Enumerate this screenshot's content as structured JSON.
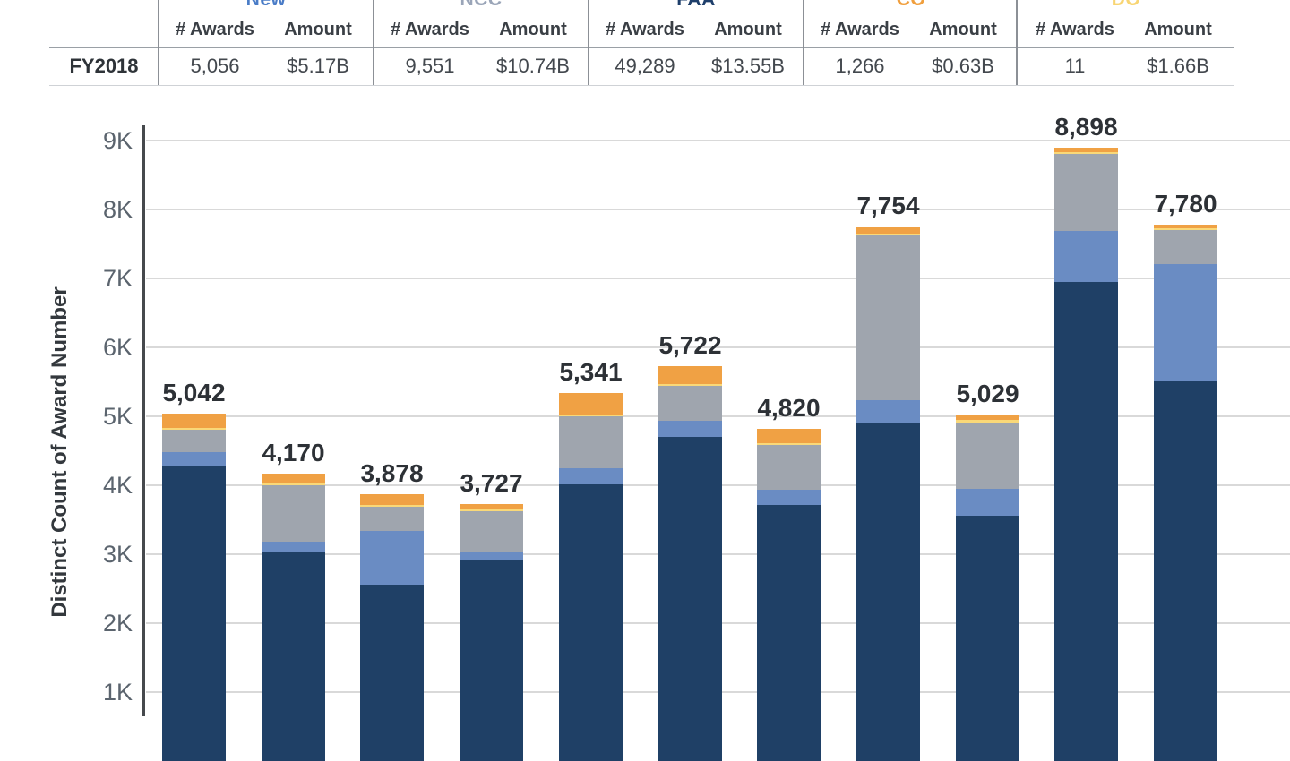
{
  "table": {
    "row_label": "FY2018",
    "sub_headers": {
      "awards": "# Awards",
      "amount": "Amount"
    },
    "groups": [
      {
        "label": "New",
        "color": "#4a7cc7",
        "awards": "5,056",
        "amount": "$5.17B"
      },
      {
        "label": "NCC",
        "color": "#9aa5b8",
        "awards": "9,551",
        "amount": "$10.74B"
      },
      {
        "label": "FAA",
        "color": "#1e3f6b",
        "awards": "49,289",
        "amount": "$13.55B"
      },
      {
        "label": "CO",
        "color": "#f09f3e",
        "awards": "1,266",
        "amount": "$0.63B"
      },
      {
        "label": "DO",
        "color": "#f8d573",
        "awards": "11",
        "amount": "$1.66B"
      }
    ]
  },
  "chart_data": {
    "type": "bar",
    "stacked": true,
    "title": "",
    "xlabel": "",
    "ylabel": "Distinct Count of Award Number",
    "y_ticks": [
      "9K",
      "8K",
      "7K",
      "6K",
      "5K",
      "4K",
      "3K",
      "2K",
      "1K"
    ],
    "ylim": [
      0,
      9400
    ],
    "grid": true,
    "legend_position": "table-header",
    "bar_count": 11,
    "total_labels": [
      "5,042",
      "4,170",
      "3,878",
      "3,727",
      "5,341",
      "5,722",
      "4,820",
      "7,754",
      "5,029",
      "8,898",
      "7,780"
    ],
    "totals": [
      5042,
      4170,
      3878,
      3727,
      5341,
      5722,
      4820,
      7754,
      5029,
      8898,
      7780
    ],
    "series": [
      {
        "name": "FAA",
        "color": "#1f4066",
        "values": [
          4270,
          3030,
          2560,
          2910,
          4010,
          4700,
          3715,
          4890,
          3560,
          6950,
          5520
        ]
      },
      {
        "name": "New",
        "color": "#6a8cc3",
        "values": [
          210,
          155,
          780,
          130,
          235,
          235,
          220,
          340,
          390,
          740,
          1690
        ]
      },
      {
        "name": "NCC",
        "color": "#9fa5ae",
        "values": [
          330,
          820,
          350,
          585,
          755,
          505,
          650,
          2400,
          960,
          1115,
          490
        ]
      },
      {
        "name": "DO",
        "color": "#f9d878",
        "values": [
          20,
          25,
          30,
          25,
          30,
          20,
          25,
          15,
          39,
          30,
          25
        ]
      },
      {
        "name": "CO",
        "color": "#f0a144",
        "values": [
          212,
          140,
          158,
          77,
          311,
          262,
          210,
          109,
          80,
          63,
          55
        ]
      }
    ]
  }
}
